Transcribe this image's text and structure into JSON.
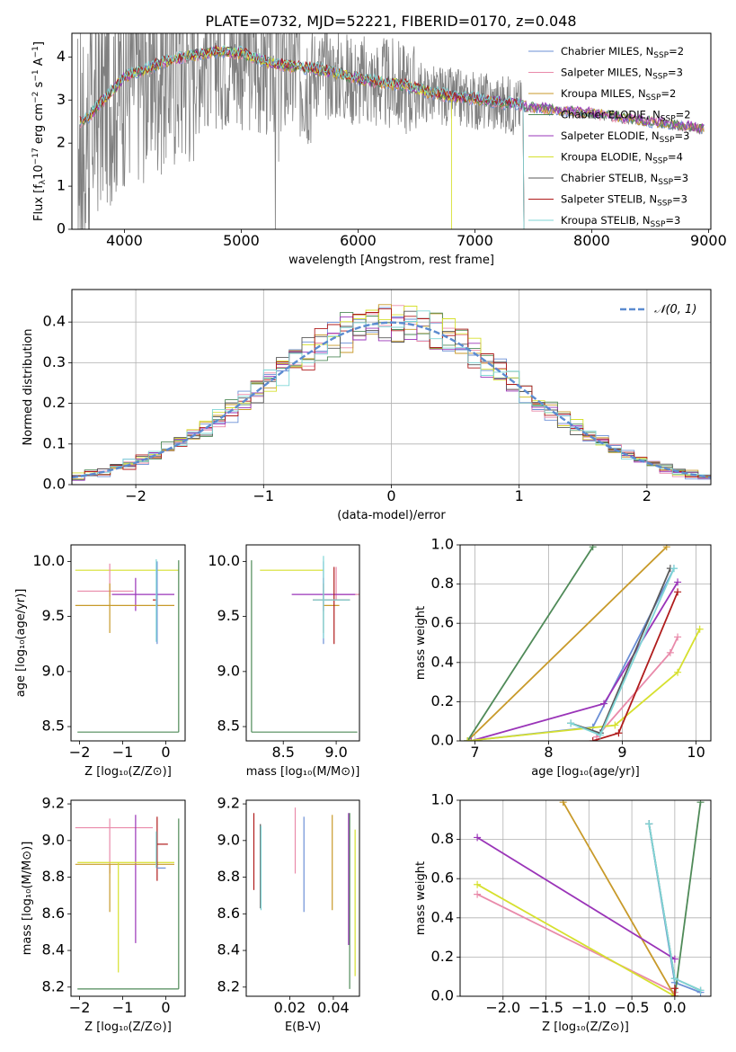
{
  "figure_title": "PLATE=0732, MJD=52221, FIBERID=0170, z=0.048",
  "colors": {
    "Chabrier MILES": "#6b8fd6",
    "Salpeter MILES": "#e98aaa",
    "Kroupa MILES": "#c89a2a",
    "Chabrier ELODIE": "#4f8a58",
    "Salpeter ELODIE": "#9a34b8",
    "Kroupa ELODIE": "#d6e02e",
    "Chabrier STELIB": "#5a5a5a",
    "Salpeter STELIB": "#b01c1c",
    "Kroupa STELIB": "#7fd6d6",
    "data": "#808080",
    "orange": "#d97c2e"
  },
  "chart_data": [
    {
      "id": "spectrum",
      "type": "line",
      "title": "PLATE=0732, MJD=52221, FIBERID=0170, z=0.048",
      "xlabel": "wavelength [Angstrom, rest frame]",
      "ylabel_parts": [
        "Flux [f",
        "λ",
        "10",
        "−17",
        " erg cm",
        "−2",
        " s",
        "−1",
        " A",
        "−1",
        "]"
      ],
      "xlim": [
        3550,
        9020
      ],
      "ylim": [
        0,
        4.55
      ],
      "xticks": [
        4000,
        5000,
        6000,
        7000,
        8000,
        9000
      ],
      "yticks": [
        0,
        1,
        2,
        3,
        4
      ],
      "legend_position": "upper right",
      "series": [
        {
          "name": "Chabrier MILES",
          "nssp": 2
        },
        {
          "name": "Salpeter MILES",
          "nssp": 3
        },
        {
          "name": "Kroupa MILES",
          "nssp": 2
        },
        {
          "name": "Chabrier ELODIE",
          "nssp": 2
        },
        {
          "name": "Salpeter ELODIE",
          "nssp": 3
        },
        {
          "name": "Kroupa ELODIE",
          "nssp": 4
        },
        {
          "name": "Chabrier STELIB",
          "nssp": 3
        },
        {
          "name": "Salpeter STELIB",
          "nssp": 3
        },
        {
          "name": "Kroupa STELIB",
          "nssp": 3
        }
      ],
      "continuum": [
        [
          3600,
          2.4
        ],
        [
          3700,
          2.6
        ],
        [
          3800,
          2.9
        ],
        [
          3900,
          3.2
        ],
        [
          4000,
          3.5
        ],
        [
          4200,
          3.7
        ],
        [
          4400,
          3.9
        ],
        [
          4600,
          4.0
        ],
        [
          4800,
          4.1
        ],
        [
          5000,
          4.05
        ],
        [
          5200,
          3.85
        ],
        [
          5400,
          3.75
        ],
        [
          5600,
          3.7
        ],
        [
          5800,
          3.6
        ],
        [
          6000,
          3.45
        ],
        [
          6200,
          3.38
        ],
        [
          6400,
          3.3
        ],
        [
          6600,
          3.15
        ],
        [
          6800,
          3.05
        ],
        [
          7000,
          3.0
        ],
        [
          7200,
          2.92
        ],
        [
          7400,
          2.85
        ],
        [
          7600,
          2.78
        ],
        [
          7800,
          2.72
        ],
        [
          8000,
          2.68
        ],
        [
          8200,
          2.6
        ],
        [
          8400,
          2.52
        ],
        [
          8600,
          2.45
        ],
        [
          8800,
          2.38
        ],
        [
          8960,
          2.32
        ]
      ],
      "model_ends": {
        "Kroupa ELODIE": 6800,
        "Salpeter STELIB": 7420,
        "Chabrier STELIB": 7420,
        "Kroupa STELIB": 7420
      }
    },
    {
      "id": "residuals",
      "type": "histogram",
      "xlabel": "(data-model)/error",
      "ylabel": "Normed distribution",
      "xlim": [
        -2.5,
        2.5
      ],
      "ylim": [
        0,
        0.48
      ],
      "xticks": [
        -2,
        -1,
        0,
        1,
        2
      ],
      "yticks": [
        0.0,
        0.1,
        0.2,
        0.3,
        0.4
      ],
      "grid": true,
      "legend": "𝒩(0, 1)",
      "legend_position": "upper right",
      "bin_width": 0.1
    },
    {
      "id": "age_vs_Z",
      "type": "errorbar",
      "xlabel": "Z [log₁₀(Z/Z⊙)]",
      "ylabel": "age  [log₁₀(age/yr)]",
      "xlim": [
        -2.2,
        0.45
      ],
      "ylim": [
        8.37,
        10.15
      ],
      "xticks": [
        -2,
        -1,
        0
      ],
      "yticks": [
        8.5,
        9.0,
        9.5,
        10.0
      ],
      "points": [
        {
          "model": "Kroupa ELODIE",
          "x": -0.8,
          "xerr": [
            1.3,
            1.1
          ],
          "y": 9.92,
          "yerr": [
            0.0,
            0.0
          ]
        },
        {
          "model": "Salpeter MILES",
          "x": -1.3,
          "xerr": [
            0.75,
            0.55
          ],
          "y": 9.73,
          "yerr": [
            0.05,
            0.25
          ]
        },
        {
          "model": "Salpeter ELODIE",
          "x": -0.7,
          "xerr": [
            0.55,
            0.9
          ],
          "y": 9.7,
          "yerr": [
            0.15,
            0.15
          ]
        },
        {
          "model": "Kroupa MILES",
          "x": -1.3,
          "xerr": [
            0.8,
            1.5
          ],
          "y": 9.6,
          "yerr": [
            0.25,
            0.2
          ]
        },
        {
          "model": "Salpeter STELIB",
          "x": -0.2,
          "xerr": [
            0.1,
            0.0
          ],
          "y": 9.65,
          "yerr": [
            0.05,
            0.05
          ]
        },
        {
          "model": "Chabrier MILES",
          "x": -0.2,
          "xerr": [
            0.0,
            0.0
          ],
          "y": 9.65,
          "yerr": [
            0.4,
            0.35
          ]
        },
        {
          "model": "Chabrier ELODIE",
          "x": 0.3,
          "xerr": [
            2.35,
            0.0
          ],
          "y": 8.45,
          "yerr": [
            0.0,
            1.56
          ]
        },
        {
          "model": "Kroupa STELIB",
          "x": -0.22,
          "xerr": [
            0.0,
            0.0
          ],
          "y": 9.62,
          "yerr": [
            0.35,
            0.4
          ]
        }
      ]
    },
    {
      "id": "age_vs_mass",
      "type": "errorbar",
      "xlabel": "mass [log₁₀(M/M⊙)]",
      "xlim": [
        8.15,
        9.22
      ],
      "ylim": [
        8.37,
        10.15
      ],
      "xticks": [
        8.5,
        9.0
      ],
      "yticks": [
        8.5,
        9.0,
        9.5,
        10.0
      ],
      "points": [
        {
          "model": "Kroupa ELODIE",
          "x": 8.88,
          "xerr": [
            0.6,
            0.0
          ],
          "y": 9.92,
          "yerr": [
            0.0,
            0.0
          ]
        },
        {
          "model": "Salpeter MILES",
          "x": 9.0,
          "xerr": [
            0.0,
            0.22
          ],
          "y": 9.7,
          "yerr": [
            0.05,
            0.25
          ]
        },
        {
          "model": "Salpeter ELODIE",
          "x": 8.88,
          "xerr": [
            0.3,
            0.3
          ],
          "y": 9.7,
          "yerr": [
            0.15,
            0.15
          ]
        },
        {
          "model": "Kroupa MILES",
          "x": 8.88,
          "xerr": [
            0.0,
            0.15
          ],
          "y": 9.6,
          "yerr": [
            0.25,
            0.2
          ]
        },
        {
          "model": "Salpeter STELIB",
          "x": 8.98,
          "xerr": [
            0.2,
            0.15
          ],
          "y": 9.65,
          "yerr": [
            0.4,
            0.3
          ]
        },
        {
          "model": "Chabrier MILES",
          "x": 8.88,
          "xerr": [
            0.0,
            0.0
          ],
          "y": 9.65,
          "yerr": [
            0.4,
            0.35
          ]
        },
        {
          "model": "Chabrier ELODIE",
          "x": 8.2,
          "xerr": [
            0.0,
            1.0
          ],
          "y": 8.45,
          "yerr": [
            0.0,
            1.56
          ]
        },
        {
          "model": "Kroupa STELIB",
          "x": 8.88,
          "xerr": [
            0.1,
            0.25
          ],
          "y": 9.65,
          "yerr": [
            0.35,
            0.4
          ]
        }
      ]
    },
    {
      "id": "weight_vs_age",
      "type": "line",
      "xlabel": "age  [log₁₀(age/yr)]",
      "ylabel": "mass weight",
      "xlim": [
        6.8,
        10.2
      ],
      "ylim": [
        0,
        1.0
      ],
      "xticks": [
        7,
        8,
        9,
        10
      ],
      "yticks": [
        0.0,
        0.2,
        0.4,
        0.6,
        0.8,
        1.0
      ],
      "grid": true,
      "series": [
        {
          "model": "Chabrier MILES",
          "x": [
            6.9,
            8.6,
            9.7
          ],
          "y": [
            0.0,
            0.07,
            0.88
          ]
        },
        {
          "model": "Salpeter MILES",
          "x": [
            8.65,
            9.65,
            9.75
          ],
          "y": [
            0.02,
            0.45,
            0.53
          ]
        },
        {
          "model": "Kroupa MILES",
          "x": [
            6.9,
            9.6
          ],
          "y": [
            0.0,
            0.99
          ]
        },
        {
          "model": "Chabrier ELODIE",
          "x": [
            6.9,
            8.6
          ],
          "y": [
            0.0,
            0.99
          ]
        },
        {
          "model": "Salpeter ELODIE",
          "x": [
            6.95,
            8.75,
            9.75
          ],
          "y": [
            0.0,
            0.19,
            0.81
          ]
        },
        {
          "model": "Kroupa ELODIE",
          "x": [
            6.9,
            8.9,
            9.75,
            10.05
          ],
          "y": [
            0.0,
            0.08,
            0.35,
            0.57
          ]
        },
        {
          "model": "Chabrier STELIB",
          "x": [
            8.3,
            8.7,
            9.65
          ],
          "y": [
            0.09,
            0.04,
            0.88
          ]
        },
        {
          "model": "Salpeter STELIB",
          "x": [
            8.6,
            8.95,
            9.75
          ],
          "y": [
            0.0,
            0.04,
            0.76
          ]
        },
        {
          "model": "Kroupa STELIB",
          "x": [
            8.3,
            8.7,
            9.7
          ],
          "y": [
            0.09,
            0.03,
            0.88
          ]
        }
      ]
    },
    {
      "id": "mass_vs_Z",
      "type": "errorbar",
      "xlabel": "Z [log₁₀(Z/Z⊙)]",
      "ylabel": "mass [log₁₀(M/M⊙)]",
      "xlim": [
        -2.2,
        0.45
      ],
      "ylim": [
        8.15,
        9.22
      ],
      "xticks": [
        -2,
        -1,
        0
      ],
      "yticks": [
        8.2,
        8.4,
        8.6,
        8.8,
        9.0,
        9.2
      ],
      "points": [
        {
          "model": "Salpeter MILES",
          "x": -1.3,
          "xerr": [
            0.8,
            1.0
          ],
          "y": 9.07,
          "yerr": [
            0.25,
            0.05
          ]
        },
        {
          "model": "Salpeter ELODIE",
          "x": -0.7,
          "xerr": [
            0.0,
            0.0
          ],
          "y": 8.9,
          "yerr": [
            0.46,
            0.24
          ]
        },
        {
          "model": "Kroupa MILES",
          "x": -1.3,
          "xerr": [
            0.8,
            1.5
          ],
          "y": 8.87,
          "yerr": [
            0.26,
            0.0
          ]
        },
        {
          "model": "Kroupa ELODIE",
          "x": -1.1,
          "xerr": [
            0.95,
            1.3
          ],
          "y": 8.88,
          "yerr": [
            0.6,
            0.0
          ]
        },
        {
          "model": "Salpeter STELIB",
          "x": -0.2,
          "xerr": [
            0.0,
            0.25
          ],
          "y": 8.98,
          "yerr": [
            0.2,
            0.15
          ]
        },
        {
          "model": "Chabrier MILES",
          "x": -0.2,
          "xerr": [
            0.0,
            0.2
          ],
          "y": 8.85,
          "yerr": [
            0.0,
            0.0
          ]
        },
        {
          "model": "Chabrier ELODIE",
          "x": 0.3,
          "xerr": [
            2.35,
            0.0
          ],
          "y": 8.19,
          "yerr": [
            0.0,
            0.93
          ]
        },
        {
          "model": "Kroupa STELIB",
          "x": -0.22,
          "xerr": [
            0.0,
            0.0
          ],
          "y": 8.85,
          "yerr": [
            0.0,
            0.2
          ]
        }
      ]
    },
    {
      "id": "mass_vs_ebv",
      "type": "errorbar",
      "xlabel": "E(B-V)",
      "xlim": [
        0.0,
        0.052
      ],
      "ylim": [
        8.15,
        9.22
      ],
      "xticks": [
        0.02,
        0.04
      ],
      "yticks": [
        8.2,
        8.4,
        8.6,
        8.8,
        9.0,
        9.2
      ],
      "points": [
        {
          "model": "Salpeter STELIB",
          "x": 0.0035,
          "y": 8.94,
          "yerr": [
            0.21,
            0.21
          ]
        },
        {
          "model": "Chabrier STELIB",
          "x": 0.0065,
          "y": 8.86,
          "yerr": [
            0.23,
            0.23
          ]
        },
        {
          "model": "Kroupa STELIB",
          "x": 0.0068,
          "y": 8.85,
          "yerr": [
            0.23,
            0.23
          ]
        },
        {
          "model": "Salpeter MILES",
          "x": 0.0225,
          "y": 9.0,
          "yerr": [
            0.18,
            0.18
          ]
        },
        {
          "model": "Chabrier MILES",
          "x": 0.0265,
          "y": 8.87,
          "yerr": [
            0.26,
            0.26
          ]
        },
        {
          "model": "Kroupa MILES",
          "x": 0.0395,
          "y": 8.88,
          "yerr": [
            0.26,
            0.26
          ]
        },
        {
          "model": "Salpeter ELODIE",
          "x": 0.047,
          "y": 8.9,
          "yerr": [
            0.47,
            0.25
          ]
        },
        {
          "model": "Chabrier ELODIE",
          "x": 0.0475,
          "y": 8.67,
          "yerr": [
            0.48,
            0.48
          ]
        },
        {
          "model": "Kroupa ELODIE",
          "x": 0.05,
          "y": 8.66,
          "yerr": [
            0.4,
            0.4
          ]
        }
      ]
    },
    {
      "id": "weight_vs_Z",
      "type": "line",
      "xlabel": "Z [log₁₀(Z/Z⊙)]",
      "ylabel": "mass weight",
      "xlim": [
        -2.5,
        0.42
      ],
      "ylim": [
        0,
        1.0
      ],
      "xticks": [
        -2.0,
        -1.5,
        -1.0,
        -0.5,
        0.0
      ],
      "yticks": [
        0.0,
        0.2,
        0.4,
        0.6,
        0.8,
        1.0
      ],
      "grid": true,
      "series": [
        {
          "model": "Chabrier MILES",
          "x": [
            -0.3,
            0.0,
            0.3
          ],
          "y": [
            0.88,
            0.07,
            0.02
          ]
        },
        {
          "model": "Salpeter MILES",
          "x": [
            -2.3,
            0.0
          ],
          "y": [
            0.52,
            0.02
          ]
        },
        {
          "model": "Kroupa MILES",
          "x": [
            -1.3,
            0.0
          ],
          "y": [
            0.99,
            0.0
          ]
        },
        {
          "model": "Chabrier ELODIE",
          "x": [
            0.0,
            0.3
          ],
          "y": [
            0.0,
            0.99
          ]
        },
        {
          "model": "Salpeter ELODIE",
          "x": [
            -2.3,
            0.0
          ],
          "y": [
            0.81,
            0.19
          ]
        },
        {
          "model": "Kroupa ELODIE",
          "x": [
            -2.3,
            0.0
          ],
          "y": [
            0.57,
            0.0
          ]
        },
        {
          "model": "Chabrier STELIB",
          "x": [
            -0.3,
            0.0,
            0.3
          ],
          "y": [
            0.88,
            0.09,
            0.03
          ]
        },
        {
          "model": "Salpeter STELIB",
          "x": [
            0.0,
            0.0
          ],
          "y": [
            0.0,
            0.04
          ]
        },
        {
          "model": "Kroupa STELIB",
          "x": [
            -0.3,
            0.0,
            0.3
          ],
          "y": [
            0.88,
            0.09,
            0.03
          ]
        }
      ]
    }
  ]
}
